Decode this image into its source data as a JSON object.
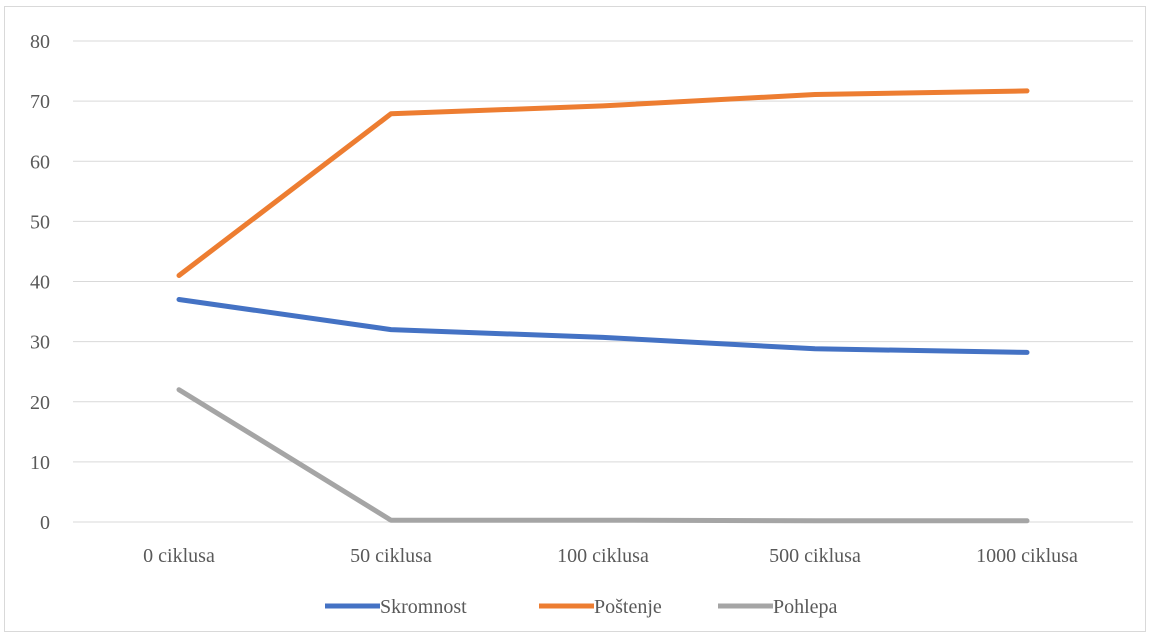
{
  "chart_data": {
    "type": "line",
    "title": "",
    "xlabel": "",
    "ylabel": "",
    "categories": [
      "0 ciklusa",
      "50 ciklusa",
      "100 ciklusa",
      "500 ciklusa",
      "1000 ciklusa"
    ],
    "ylim": [
      0,
      80
    ],
    "yticks": [
      0,
      10,
      20,
      30,
      40,
      50,
      60,
      70,
      80
    ],
    "grid": true,
    "legend_position": "bottom",
    "series": [
      {
        "name": "Skromnost",
        "color": "#4472c4",
        "values": [
          37,
          32,
          30.7,
          28.8,
          28.2
        ]
      },
      {
        "name": "Poštenje",
        "color": "#ed7d31",
        "values": [
          41,
          67.9,
          69.2,
          71.1,
          71.7
        ]
      },
      {
        "name": "Pohlepa",
        "color": "#a5a5a5",
        "values": [
          22,
          0.3,
          0.3,
          0.2,
          0.2
        ]
      }
    ]
  }
}
